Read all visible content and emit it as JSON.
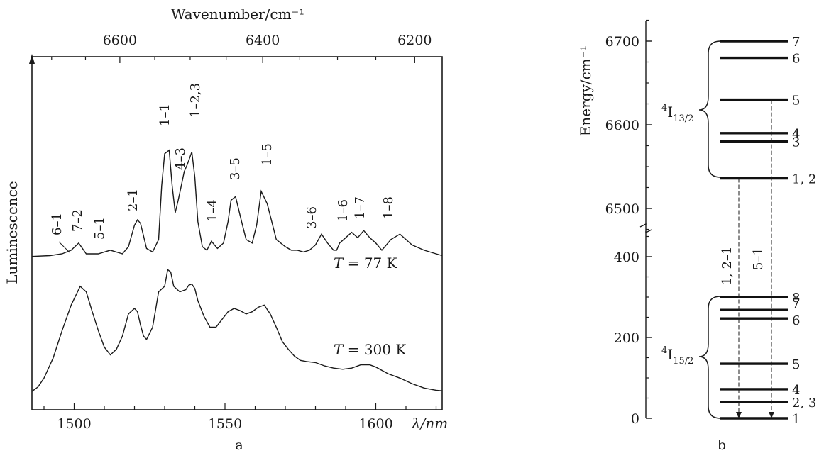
{
  "chart_data": [
    {
      "panel": "a",
      "type": "line",
      "xlabel": "λ/nm",
      "ylabel": "Luminescence",
      "x2label": "Wavenumber/cm⁻¹",
      "xlim": [
        1486,
        1622
      ],
      "xticks": [
        1500,
        1550,
        1600
      ],
      "x2ticks": [
        6600,
        6400,
        6200
      ],
      "grid": false,
      "series": [
        {
          "name": "T = 77 K",
          "label": {
            "T": "T",
            "eq": " = 77 K"
          },
          "x": [
            1486,
            1492,
            1496,
            1499,
            1501.5,
            1504,
            1508,
            1510,
            1512,
            1516,
            1518,
            1520,
            1521,
            1522,
            1524,
            1526,
            1528,
            1529,
            1530,
            1531.5,
            1532.5,
            1533.5,
            1534.5,
            1535.5,
            1536.5,
            1537.5,
            1539,
            1540,
            1541,
            1542.5,
            1544,
            1545.5,
            1547.5,
            1549.5,
            1551,
            1552,
            1553.5,
            1555.5,
            1557,
            1559,
            1560.5,
            1562,
            1564,
            1567,
            1570,
            1572,
            1574,
            1576,
            1578,
            1580,
            1582,
            1584,
            1586,
            1587,
            1588,
            1590,
            1592,
            1594,
            1596,
            1598,
            1600,
            1602,
            1605,
            1608,
            1612,
            1616,
            1620,
            1622
          ],
          "y": [
            0.5,
            1,
            2,
            4,
            8,
            2,
            2,
            3,
            4,
            2,
            6,
            18,
            21,
            19,
            5,
            3,
            10,
            40,
            58,
            60,
            40,
            25,
            32,
            40,
            48,
            52,
            59,
            45,
            20,
            6,
            4,
            9,
            5,
            8,
            20,
            32,
            34,
            20,
            10,
            8,
            18,
            37,
            30,
            10,
            6,
            4,
            4,
            3,
            4,
            7,
            13,
            8,
            4,
            4,
            8,
            11,
            14,
            11,
            15,
            11,
            8,
            4,
            10,
            13,
            7,
            4,
            2,
            1
          ],
          "peak_labels": [
            "6–1",
            "7–2",
            "5–1",
            "2–1",
            "1–1",
            "4–3",
            "1–2,3",
            "1–4",
            "3–5",
            "1–5",
            "3–6",
            "1–6",
            "1–7",
            "1–8"
          ]
        },
        {
          "name": "T = 300 K",
          "label": {
            "T": "T",
            "eq": " = 300 K"
          },
          "x": [
            1486,
            1488,
            1490,
            1493,
            1496,
            1499,
            1502,
            1504,
            1506,
            1508,
            1510,
            1512,
            1514,
            1516,
            1518,
            1520,
            1521,
            1522,
            1523,
            1524,
            1526,
            1527,
            1528,
            1530,
            1531,
            1532,
            1533,
            1535,
            1537,
            1538,
            1539,
            1540,
            1541,
            1543,
            1545,
            1547,
            1549,
            1551,
            1553,
            1555,
            1557,
            1559,
            1561,
            1563,
            1565,
            1567,
            1569,
            1571,
            1573,
            1575,
            1577,
            1580,
            1583,
            1586,
            1589,
            1592,
            1595,
            1598,
            1600,
            1604,
            1608,
            1612,
            1616,
            1620,
            1622
          ],
          "y": [
            0,
            4,
            12,
            30,
            55,
            78,
            95,
            90,
            72,
            55,
            40,
            33,
            38,
            50,
            70,
            75,
            72,
            60,
            50,
            47,
            58,
            74,
            90,
            95,
            110,
            108,
            95,
            90,
            92,
            96,
            97,
            93,
            82,
            68,
            58,
            58,
            65,
            72,
            75,
            73,
            70,
            72,
            76,
            78,
            70,
            58,
            45,
            38,
            32,
            28,
            27,
            26,
            23,
            21,
            20,
            21,
            24,
            24,
            22,
            16,
            12,
            7,
            3,
            1,
            0.5
          ]
        }
      ]
    },
    {
      "panel": "b",
      "type": "diagram",
      "ylabel": "Energy/cm⁻¹",
      "yticks_upper": [
        6500,
        6600,
        6700
      ],
      "yticks_lower": [
        0,
        200,
        400
      ],
      "axis_break": true,
      "manifolds": [
        {
          "label": {
            "main": "4",
            "letter": "I",
            "sub": "13/2"
          },
          "levels": [
            {
              "energy": 6700,
              "label": "7"
            },
            {
              "energy": 6680,
              "label": "6"
            },
            {
              "energy": 6630,
              "label": "5"
            },
            {
              "energy": 6590,
              "label": "4"
            },
            {
              "energy": 6580,
              "label": "3"
            },
            {
              "energy": 6536,
              "label": "1, 2"
            }
          ]
        },
        {
          "label": {
            "main": "4",
            "letter": "I",
            "sub": "15/2"
          },
          "levels": [
            {
              "energy": 300,
              "label": "8"
            },
            {
              "energy": 268,
              "label": "7"
            },
            {
              "energy": 247,
              "label": "6"
            },
            {
              "energy": 135,
              "label": "5"
            },
            {
              "energy": 72,
              "label": "4"
            },
            {
              "energy": 40,
              "label": "2, 3"
            },
            {
              "energy": 0,
              "label": "1"
            }
          ]
        }
      ],
      "transitions": [
        {
          "label": "1, 2–1",
          "from": 6536,
          "to": 0
        },
        {
          "label": "5–1",
          "from": 6630,
          "to": 0
        }
      ]
    }
  ],
  "captions": {
    "a": "a",
    "b": "b"
  }
}
